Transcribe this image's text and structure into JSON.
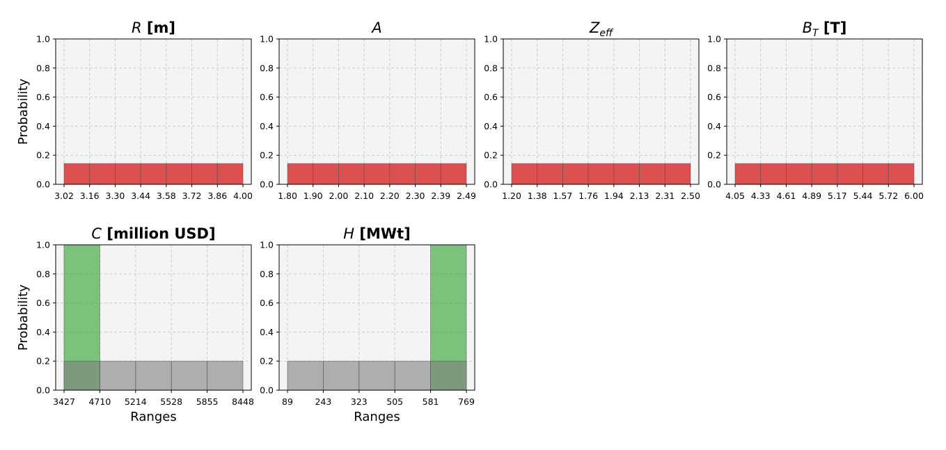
{
  "chart_data": [
    {
      "type": "bar",
      "title_symbol": "R",
      "title_sub": "",
      "title_unit": "[m]",
      "xlabel": "",
      "ylabel": "Probability",
      "ylim": [
        0,
        1.0
      ],
      "yticks": [
        "0.0",
        "0.2",
        "0.4",
        "0.6",
        "0.8",
        "1.0"
      ],
      "bin_edges": [
        "3.02",
        "3.16",
        "3.30",
        "3.44",
        "3.58",
        "3.72",
        "3.86",
        "4.00"
      ],
      "grid": true,
      "series": [
        {
          "values": [
            0.143,
            0.143,
            0.143,
            0.143,
            0.143,
            0.143,
            0.143
          ],
          "color": "#d62728"
        }
      ]
    },
    {
      "type": "bar",
      "title_symbol": "A",
      "title_sub": "",
      "title_unit": "",
      "xlabel": "",
      "ylabel": "",
      "ylim": [
        0,
        1.0
      ],
      "yticks": [
        "0.0",
        "0.2",
        "0.4",
        "0.6",
        "0.8",
        "1.0"
      ],
      "bin_edges": [
        "1.80",
        "1.90",
        "2.00",
        "2.10",
        "2.20",
        "2.30",
        "2.39",
        "2.49"
      ],
      "grid": true,
      "series": [
        {
          "values": [
            0.143,
            0.143,
            0.143,
            0.143,
            0.143,
            0.143,
            0.143
          ],
          "color": "#d62728"
        }
      ]
    },
    {
      "type": "bar",
      "title_symbol": "Z",
      "title_sub": "eff",
      "title_unit": "",
      "xlabel": "",
      "ylabel": "",
      "ylim": [
        0,
        1.0
      ],
      "yticks": [
        "0.0",
        "0.2",
        "0.4",
        "0.6",
        "0.8",
        "1.0"
      ],
      "bin_edges": [
        "1.20",
        "1.38",
        "1.57",
        "1.76",
        "1.94",
        "2.13",
        "2.31",
        "2.50"
      ],
      "grid": true,
      "series": [
        {
          "values": [
            0.143,
            0.143,
            0.143,
            0.143,
            0.143,
            0.143,
            0.143
          ],
          "color": "#d62728"
        }
      ]
    },
    {
      "type": "bar",
      "title_symbol": "B",
      "title_sub": "T",
      "title_unit": "[T]",
      "xlabel": "",
      "ylabel": "",
      "ylim": [
        0,
        1.0
      ],
      "yticks": [
        "0.0",
        "0.2",
        "0.4",
        "0.6",
        "0.8",
        "1.0"
      ],
      "bin_edges": [
        "4.05",
        "4.33",
        "4.61",
        "4.89",
        "5.17",
        "5.44",
        "5.72",
        "6.00"
      ],
      "grid": true,
      "series": [
        {
          "values": [
            0.143,
            0.143,
            0.143,
            0.143,
            0.143,
            0.143,
            0.143
          ],
          "color": "#d62728"
        }
      ]
    },
    {
      "type": "bar",
      "title_symbol": "C",
      "title_sub": "",
      "title_unit": "[million USD]",
      "xlabel": "Ranges",
      "ylabel": "Probability",
      "ylim": [
        0,
        1.0
      ],
      "yticks": [
        "0.0",
        "0.2",
        "0.4",
        "0.6",
        "0.8",
        "1.0"
      ],
      "bin_edges": [
        "3427",
        "4710",
        "5214",
        "5528",
        "5855",
        "8448"
      ],
      "grid": true,
      "series": [
        {
          "values": [
            1.0,
            0,
            0,
            0,
            0
          ],
          "color": "#2ca02c"
        },
        {
          "values": [
            0.2,
            0.2,
            0.2,
            0.2,
            0.2
          ],
          "color": "#7f7f7f"
        }
      ]
    },
    {
      "type": "bar",
      "title_symbol": "H",
      "title_sub": "",
      "title_unit": "[MWt]",
      "xlabel": "Ranges",
      "ylabel": "",
      "ylim": [
        0,
        1.0
      ],
      "yticks": [
        "0.0",
        "0.2",
        "0.4",
        "0.6",
        "0.8",
        "1.0"
      ],
      "bin_edges": [
        "89",
        "243",
        "323",
        "505",
        "581",
        "769"
      ],
      "grid": true,
      "series": [
        {
          "values": [
            0,
            0,
            0,
            0,
            1.0
          ],
          "color": "#2ca02c"
        },
        {
          "values": [
            0.2,
            0.2,
            0.2,
            0.2,
            0.2
          ],
          "color": "#7f7f7f"
        }
      ]
    }
  ]
}
